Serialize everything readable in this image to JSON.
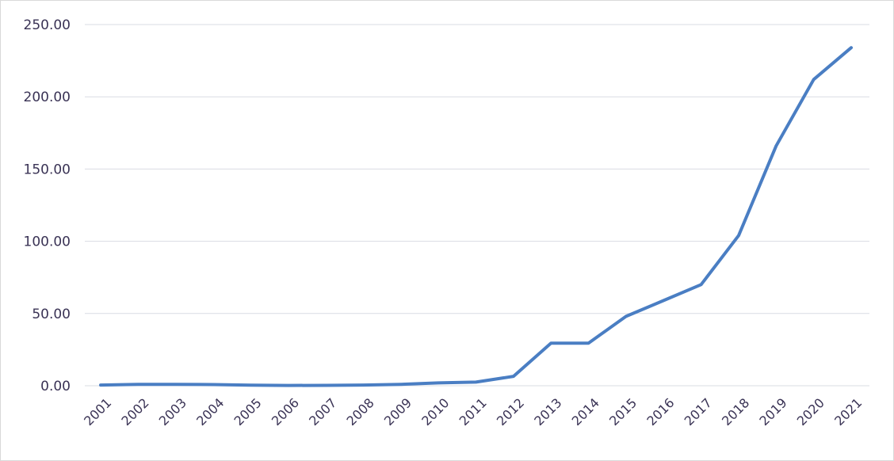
{
  "chart_data": {
    "type": "line",
    "title": "",
    "xlabel": "",
    "ylabel": "",
    "categories": [
      "2001",
      "2002",
      "2003",
      "2004",
      "2005",
      "2006",
      "2007",
      "2008",
      "2009",
      "2010",
      "2011",
      "2012",
      "2013",
      "2014",
      "2015",
      "2016",
      "2017",
      "2018",
      "2019",
      "2020",
      "2021"
    ],
    "y_ticks": [
      "0.00",
      "50.00",
      "100.00",
      "150.00",
      "200.00",
      "250.00"
    ],
    "ylim": [
      0,
      250
    ],
    "grid": true,
    "legend": "none",
    "series": [
      {
        "color": "#4a7ec3",
        "values": [
          0.5,
          1.0,
          1.0,
          0.8,
          0.4,
          0.2,
          0.3,
          0.5,
          1.0,
          2.0,
          2.5,
          6.5,
          29.5,
          29.5,
          48.0,
          59.0,
          70.0,
          104.0,
          166.0,
          212.0,
          234.0
        ]
      }
    ]
  }
}
